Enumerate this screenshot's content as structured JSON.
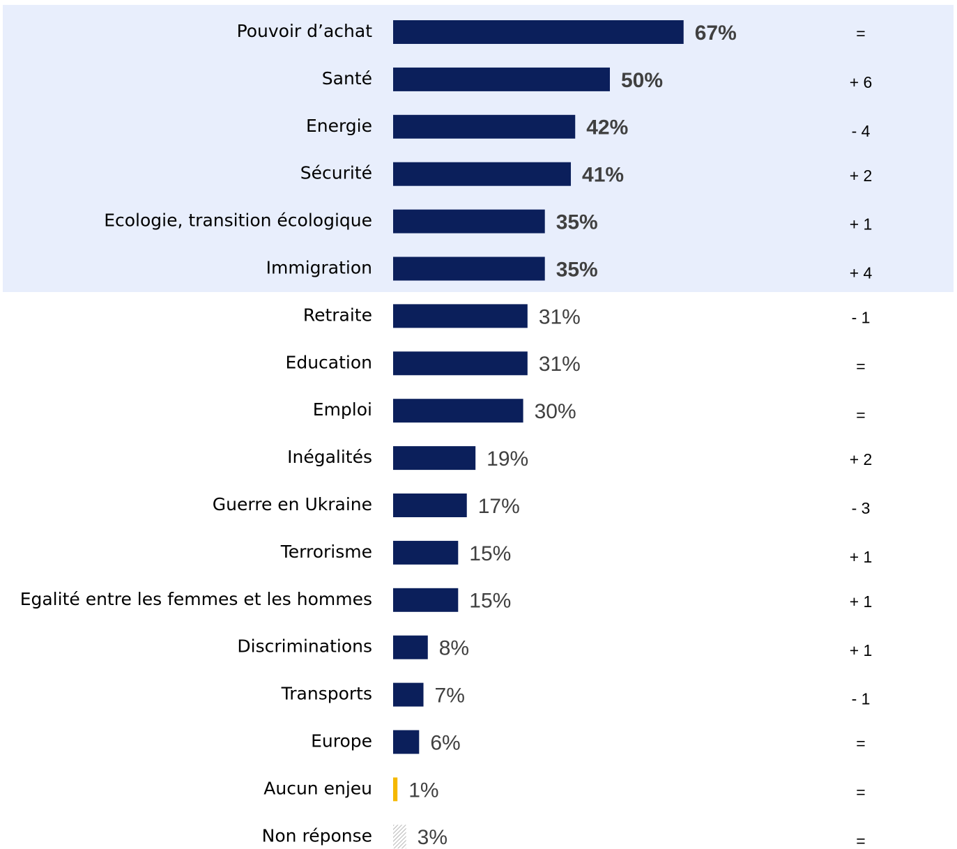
{
  "chart_data": {
    "type": "bar",
    "orientation": "horizontal",
    "categories": [
      "Pouvoir d’achat",
      "Santé",
      "Energie",
      "Sécurité",
      "Ecologie, transition écologique",
      "Immigration",
      "Retraite",
      "Education",
      "Emploi",
      "Inégalités",
      "Guerre en Ukraine",
      "Terrorisme",
      "Egalité entre les femmes et les hommes",
      "Discriminations",
      "Transports",
      "Europe",
      "Aucun enjeu",
      "Non réponse"
    ],
    "values": [
      67,
      50,
      42,
      41,
      35,
      35,
      31,
      31,
      30,
      19,
      17,
      15,
      15,
      8,
      7,
      6,
      1,
      3
    ],
    "value_labels": [
      "67%",
      "50%",
      "42%",
      "41%",
      "35%",
      "35%",
      "31%",
      "31%",
      "30%",
      "19%",
      "17%",
      "15%",
      "15%",
      "8%",
      "7%",
      "6%",
      "1%",
      "3%"
    ],
    "changes": [
      "=",
      "+ 6",
      "- 4",
      "+ 2",
      "+ 1",
      "+ 4",
      "- 1",
      "=",
      "=",
      "+ 2",
      "- 3",
      "+ 1",
      "+ 1",
      "+ 1",
      "- 1",
      "=",
      "=",
      "="
    ],
    "colors": [
      "#0b1f5b",
      "#0b1f5b",
      "#0b1f5b",
      "#0b1f5b",
      "#0b1f5b",
      "#0b1f5b",
      "#0b1f5b",
      "#0b1f5b",
      "#0b1f5b",
      "#0b1f5b",
      "#0b1f5b",
      "#0b1f5b",
      "#0b1f5b",
      "#0b1f5b",
      "#0b1f5b",
      "#0b1f5b",
      "#f5b800",
      "#a0a0a0"
    ],
    "hatched": [
      false,
      false,
      false,
      false,
      false,
      false,
      false,
      false,
      false,
      false,
      false,
      false,
      false,
      false,
      false,
      false,
      false,
      true
    ]
  }
}
